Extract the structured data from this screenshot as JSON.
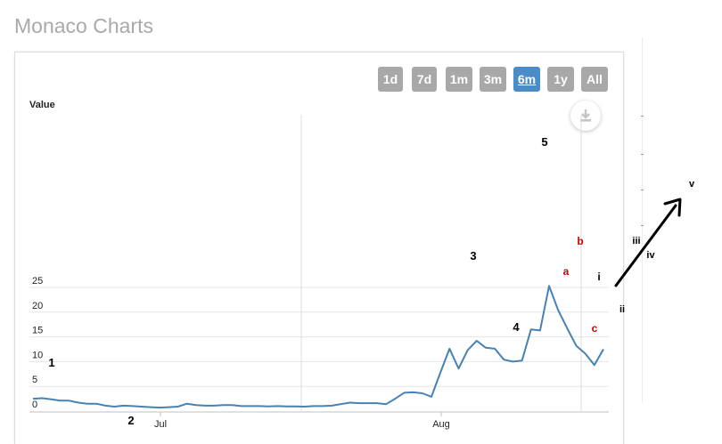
{
  "page": {
    "title": "Monaco Charts"
  },
  "range_selector": {
    "buttons": [
      {
        "label": "1d",
        "active": false
      },
      {
        "label": "7d",
        "active": false
      },
      {
        "label": "1m",
        "active": false
      },
      {
        "label": "3m",
        "active": false
      },
      {
        "label": "6m",
        "active": true
      },
      {
        "label": "1y",
        "active": false
      },
      {
        "label": "All",
        "active": false
      }
    ],
    "active_color": "#4a8cc7",
    "inactive_color": "#a8a8a8"
  },
  "export": {
    "icon": "download-icon"
  },
  "chart_data": {
    "type": "line",
    "title": "",
    "xlabel": "",
    "ylabel": "Value",
    "ylim": [
      0,
      25
    ],
    "yticks": [
      0,
      5,
      10,
      15,
      20,
      25
    ],
    "x_ticks": [
      "Jul",
      "Aug"
    ],
    "grid": true,
    "line_color": "#4682b4",
    "series": [
      {
        "values": [
          2.5,
          2.6,
          2.4,
          2.1,
          2.1,
          1.7,
          1.5,
          1.5,
          1.1,
          0.9,
          1.1,
          1.0,
          0.9,
          0.8,
          0.7,
          0.8,
          0.9,
          1.5,
          1.2,
          1.1,
          1.1,
          1.2,
          1.2,
          1.0,
          1.0,
          1.0,
          0.95,
          1.0,
          0.95,
          0.95,
          0.9,
          1.0,
          1.0,
          1.1,
          1.4,
          1.7,
          1.6,
          1.6,
          1.6,
          1.4,
          2.5,
          3.7,
          3.8,
          3.6,
          2.9,
          7.8,
          12.6,
          8.6,
          12.3,
          14.2,
          12.8,
          12.6,
          10.4,
          10.0,
          10.2,
          16.5,
          16.3,
          25.3,
          20.4,
          16.7,
          13.2,
          11.6,
          9.3,
          12.5
        ]
      }
    ],
    "annotations": [
      {
        "text": "1",
        "color": "#000000"
      },
      {
        "text": "2",
        "color": "#000000"
      },
      {
        "text": "3",
        "color": "#000000"
      },
      {
        "text": "4",
        "color": "#000000"
      },
      {
        "text": "5",
        "color": "#000000"
      },
      {
        "text": "a",
        "color": "#cc0000"
      },
      {
        "text": "b",
        "color": "#cc0000"
      },
      {
        "text": "c",
        "color": "#cc0000"
      },
      {
        "text": "i",
        "color": "#000000"
      },
      {
        "text": "ii",
        "color": "#000000"
      },
      {
        "text": "iii",
        "color": "#000000"
      },
      {
        "text": "iv",
        "color": "#000000"
      },
      {
        "text": "v",
        "color": "#000000"
      }
    ]
  }
}
